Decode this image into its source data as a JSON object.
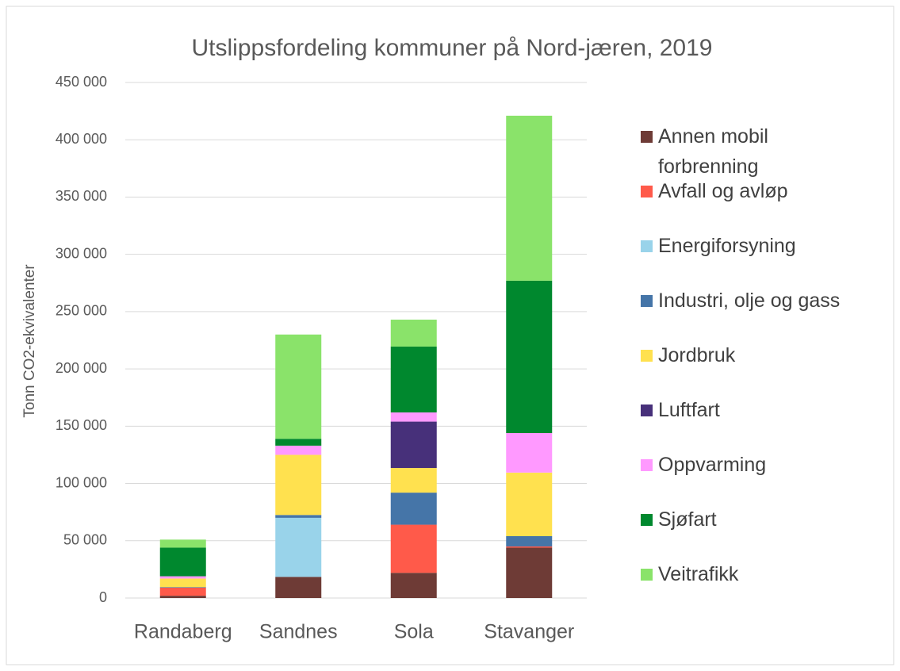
{
  "chart_data": {
    "type": "stacked_bar",
    "title": "Utslippsfordeling kommuner på Nord-jæren, 2019",
    "y_label": "Tonn CO2-ekvivalenter",
    "categories": [
      "Randaberg",
      "Sandnes",
      "Sola",
      "Stavanger"
    ],
    "series": [
      {
        "name": "Annen mobil forbrenning",
        "color": "#6e3b36",
        "values": [
          2000,
          18500,
          22000,
          44000
        ]
      },
      {
        "name": "Avfall og avløp",
        "color": "#ff5a4a",
        "values": [
          7000,
          0,
          42000,
          1000
        ]
      },
      {
        "name": "Energiforsyning",
        "color": "#99d3ea",
        "values": [
          0,
          51500,
          0,
          0
        ]
      },
      {
        "name": "Industri, olje og gass",
        "color": "#4575a8",
        "values": [
          500,
          2500,
          28000,
          9000
        ]
      },
      {
        "name": "Jordbruk",
        "color": "#ffe14f",
        "values": [
          7500,
          52500,
          21500,
          55500
        ]
      },
      {
        "name": "Luftfart",
        "color": "#47307a",
        "values": [
          0,
          0,
          40500,
          0
        ]
      },
      {
        "name": "Oppvarming",
        "color": "#ff99ff",
        "values": [
          2000,
          8000,
          8000,
          34500
        ]
      },
      {
        "name": "Sjøfart",
        "color": "#00882e",
        "values": [
          25000,
          6000,
          57500,
          133000
        ]
      },
      {
        "name": "Veitrafikk",
        "color": "#8ae36a",
        "values": [
          7000,
          91000,
          23500,
          144000
        ]
      }
    ],
    "ylim": [
      0,
      450000
    ],
    "yticks": [
      0,
      {
        "value": 50000,
        "label": "50 000"
      },
      {
        "value": 100000,
        "label": "100 000"
      },
      {
        "value": 150000,
        "label": "150 000"
      },
      {
        "value": 200000,
        "label": "200 000"
      },
      {
        "value": 250000,
        "label": "250 000"
      },
      {
        "value": 300000,
        "label": "300 000"
      },
      {
        "value": 350000,
        "label": "350 000"
      },
      {
        "value": 400000,
        "label": "400 000"
      },
      {
        "value": 450000,
        "label": "450 000"
      }
    ],
    "grid": true,
    "legend": "right"
  }
}
